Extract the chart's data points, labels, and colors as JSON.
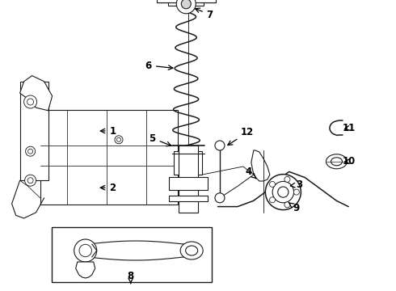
{
  "fig_width": 4.9,
  "fig_height": 3.6,
  "dpi": 100,
  "background_color": "#ffffff",
  "line_color": "#1a1a1a",
  "line_width": 0.8
}
